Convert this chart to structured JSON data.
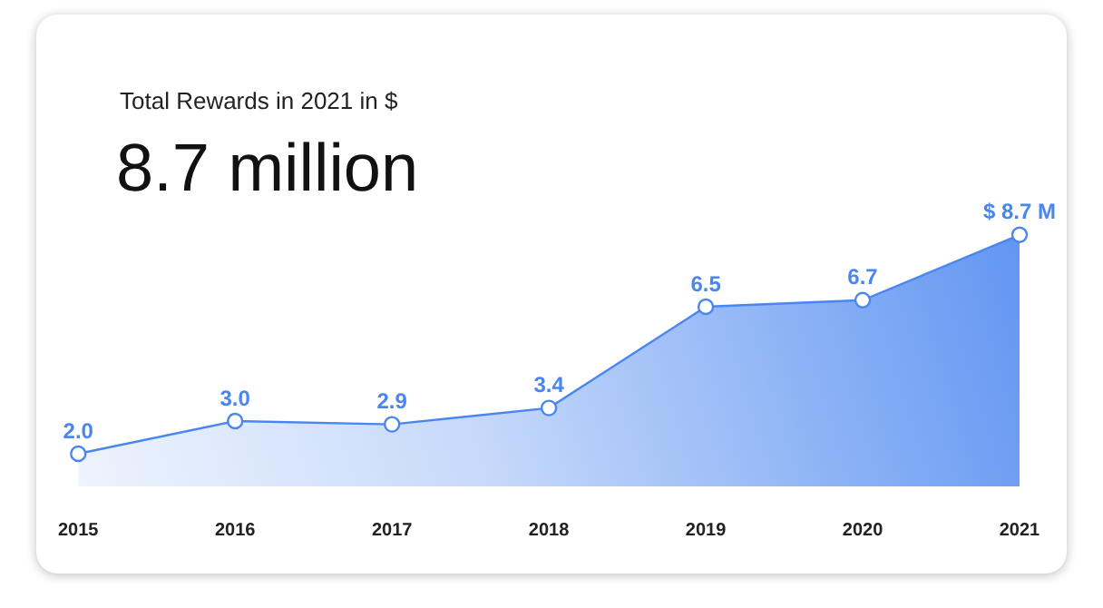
{
  "chart_data": {
    "type": "area",
    "title": "Total Rewards in 2021 in $",
    "subtitle": "8.7 million",
    "categories": [
      "2015",
      "2016",
      "2017",
      "2018",
      "2019",
      "2020",
      "2021"
    ],
    "values": [
      2.0,
      3.0,
      2.9,
      3.4,
      6.5,
      6.7,
      8.7
    ],
    "value_labels": [
      "2.0",
      "3.0",
      "2.9",
      "3.4",
      "6.5",
      "6.7",
      "$ 8.7 M"
    ],
    "color": "#4a86f0",
    "marker": "circle"
  }
}
